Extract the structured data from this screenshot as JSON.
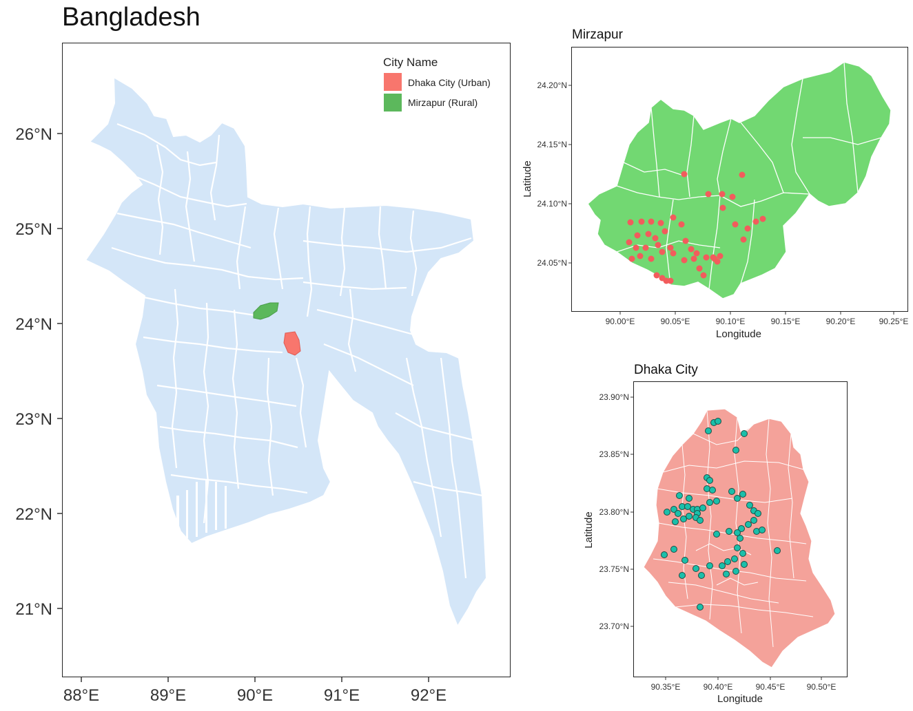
{
  "main_map": {
    "title": "Bangladesh",
    "y_ticks": [
      "26°N",
      "25°N",
      "24°N",
      "23°N",
      "22°N",
      "21°N"
    ],
    "x_ticks": [
      "88°E",
      "89°E",
      "90°E",
      "91°E",
      "92°E"
    ],
    "legend": {
      "title": "City Name",
      "items": [
        {
          "label": "Dhaka City (Urban)",
          "color": "#f8766d"
        },
        {
          "label": "Mirzapur (Rural)",
          "color": "#5cb85c"
        }
      ]
    },
    "land_color": "#d4e6f8",
    "border_color": "#ffffff"
  },
  "mirzapur_map": {
    "title": "Mirzapur",
    "xlabel": "Longitude",
    "ylabel": "Latitude",
    "x_ticks": [
      "90.00°E",
      "90.05°E",
      "90.10°E",
      "90.15°E",
      "90.20°E",
      "90.25°E"
    ],
    "y_ticks": [
      "24.20°N",
      "24.15°N",
      "24.10°N",
      "24.05°N"
    ],
    "fill_color": "#72d872",
    "point_color": "#f25c5c"
  },
  "dhaka_map": {
    "title": "Dhaka City",
    "xlabel": "Longitude",
    "ylabel": "Latitude",
    "x_ticks": [
      "90.35°E",
      "90.40°E",
      "90.45°E",
      "90.50°E"
    ],
    "y_ticks": [
      "23.90°N",
      "23.85°N",
      "23.80°N",
      "23.75°N",
      "23.70°N"
    ],
    "fill_color": "#f4a29a",
    "point_color": "#1bbfaa"
  }
}
